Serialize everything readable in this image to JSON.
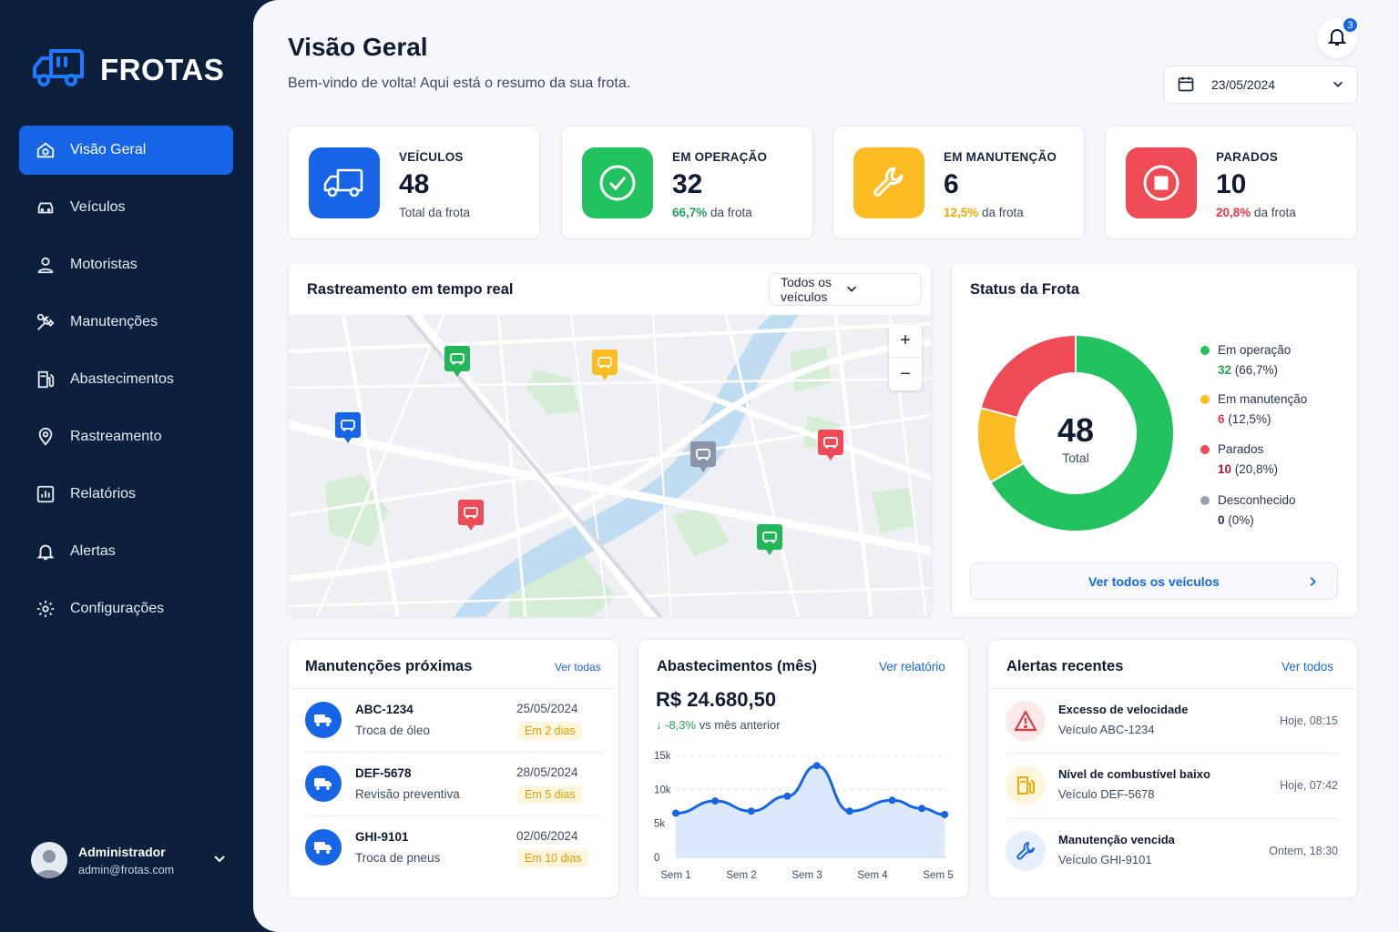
{
  "brand": {
    "name": "FROTAS",
    "logo_icon": "truck-icon"
  },
  "sidebar": {
    "items": [
      {
        "label": "Visão Geral",
        "icon": "dashboard-icon",
        "active": true
      },
      {
        "label": "Veículos",
        "icon": "car-icon"
      },
      {
        "label": "Motoristas",
        "icon": "user-icon"
      },
      {
        "label": "Manutenções",
        "icon": "tools-icon"
      },
      {
        "label": "Abastecimentos",
        "icon": "fuel-pump-icon"
      },
      {
        "label": "Rastreamento",
        "icon": "location-pin-icon"
      },
      {
        "label": "Relatórios",
        "icon": "bar-chart-icon"
      },
      {
        "label": "Alertas",
        "icon": "bell-icon"
      },
      {
        "label": "Configurações",
        "icon": "gear-icon"
      }
    ]
  },
  "user": {
    "name": "Administrador",
    "email": "admin@frotas.com"
  },
  "header": {
    "title": "Visão Geral",
    "subtitle": "Bem-vindo de volta! Aqui está o resumo da sua frota.",
    "notifications": "3",
    "date": "23/05/2024"
  },
  "stats": [
    {
      "label": "VEÍCULOS",
      "value": "48",
      "pct": "",
      "sub": "Total da frota",
      "color": "#1565e6"
    },
    {
      "label": "EM OPERAÇÃO",
      "value": "32",
      "pct": "66,7%",
      "sub": " da frota",
      "color": "#22c35e"
    },
    {
      "label": "EM MANUTENÇÃO",
      "value": "6",
      "pct": "12,5%",
      "sub": " da frota",
      "color": "#fbbd23"
    },
    {
      "label": "PARADOS",
      "value": "10",
      "pct": "20,8%",
      "sub": " da frota",
      "color": "#ef4b57"
    }
  ],
  "tracking": {
    "title": "Rastreamento em tempo real",
    "filter": "Todos os veículos",
    "zoom_in": "+",
    "zoom_out": "−"
  },
  "fleet_status": {
    "title": "Status da Frota",
    "total": "48",
    "total_label": "Total",
    "legend": [
      {
        "name": "Em operação",
        "count": "32",
        "pct": " (66,7%)",
        "value": 32,
        "color": "#22c35e"
      },
      {
        "name": "Em manutenção",
        "count": "6",
        "pct": " (12,5%)",
        "value": 6,
        "color": "#fbbd23"
      },
      {
        "name": "Parados",
        "count": "10",
        "pct": " (20,8%)",
        "value": 10,
        "color": "#ef4b57"
      },
      {
        "name": "Desconhecido",
        "count": "0",
        "pct": " (0%)",
        "value": 0,
        "color": "#9aa3b2"
      }
    ],
    "see_all": "Ver todos os veículos"
  },
  "maintenance": {
    "title": "Manutenções próximas",
    "link": "Ver todas",
    "rows": [
      {
        "plate": "ABC-1234",
        "desc": "Troca de óleo",
        "date": "25/05/2024",
        "badge": "Em 2 dias"
      },
      {
        "plate": "DEF-5678",
        "desc": "Revisão preventiva",
        "date": "28/05/2024",
        "badge": "Em 5 dias"
      },
      {
        "plate": "GHI-9101",
        "desc": "Troca de pneus",
        "date": "02/06/2024",
        "badge": "Em 10 dias"
      }
    ]
  },
  "fuel": {
    "title": "Abastecimentos (mês)",
    "link": "Ver relatório",
    "total": "R$ 24.680,50",
    "delta": "-8,3%",
    "delta_suffix": " vs mês anterior"
  },
  "chart_data": {
    "type": "area",
    "categories": [
      "Sem 1",
      "",
      "Sem 2",
      "",
      "Sem 3",
      "",
      "Sem 4",
      "",
      "Sem 5"
    ],
    "x_ticks": [
      "Sem 1",
      "Sem 2",
      "Sem 3",
      "Sem 4",
      "Sem 5"
    ],
    "x": [
      1,
      1.6,
      2.15,
      2.7,
      3.15,
      3.65,
      4.3,
      4.75,
      5.1
    ],
    "values": [
      6500,
      8300,
      6800,
      9000,
      13500,
      6800,
      8400,
      7200,
      6300
    ],
    "y_ticks": [
      "0",
      "5k",
      "10k",
      "15k"
    ],
    "ylim": [
      0,
      15000
    ],
    "grid": true,
    "color": "#1565e6"
  },
  "alerts": {
    "title": "Alertas recentes",
    "link": "Ver todos",
    "rows": [
      {
        "title": "Excesso de velocidade",
        "sub": "Veículo ABC-1234",
        "time": "Hoje, 08:15",
        "icon": "warning-triangle-icon",
        "color": "#ef4b57"
      },
      {
        "title": "Nível de combustível baixo",
        "sub": "Veículo DEF-5678",
        "time": "Hoje, 07:42",
        "icon": "fuel-pump-icon",
        "color": "#fbbd23"
      },
      {
        "title": "Manutenção vencida",
        "sub": "Veículo GHI-9101",
        "time": "Ontem, 18:30",
        "icon": "wrench-icon",
        "color": "#1565e6"
      }
    ]
  }
}
